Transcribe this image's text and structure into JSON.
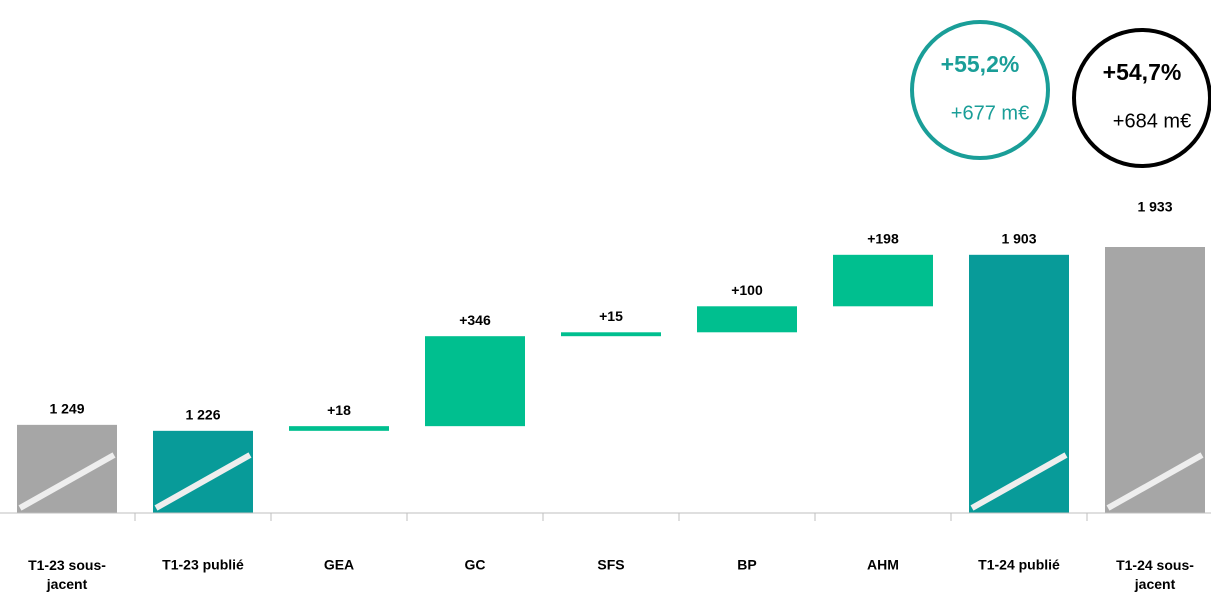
{
  "chart_data": {
    "type": "waterfall",
    "categories": [
      "T1-23 sous-jacent",
      "T1-23 publié",
      "GEA",
      "GC",
      "SFS",
      "BP",
      "AHM",
      "T1-24 publié",
      "T1-24 sous-jacent"
    ],
    "values": [
      1249,
      1226,
      18,
      346,
      15,
      100,
      198,
      1903,
      1933
    ],
    "value_labels": [
      "1 249",
      "1 226",
      "+18",
      "+346",
      "+15",
      "+100",
      "+198",
      "1 903",
      "1 933"
    ],
    "measure": [
      "absolute",
      "absolute",
      "relative",
      "relative",
      "relative",
      "relative",
      "relative",
      "absolute",
      "absolute"
    ],
    "colors": [
      "#a6a6a6",
      "#089b99",
      "#00bf8f",
      "#00bf8f",
      "#00bf8f",
      "#00bf8f",
      "#00bf8f",
      "#089b99",
      "#a6a6a6"
    ],
    "ylim": [
      910,
      2883
    ],
    "annotations": [
      {
        "title": "+55,2%",
        "text": "+677 m€",
        "color": "#1a9e98"
      },
      {
        "title": "+54,7%",
        "text": "+684 m€",
        "color": "#000000"
      }
    ]
  }
}
